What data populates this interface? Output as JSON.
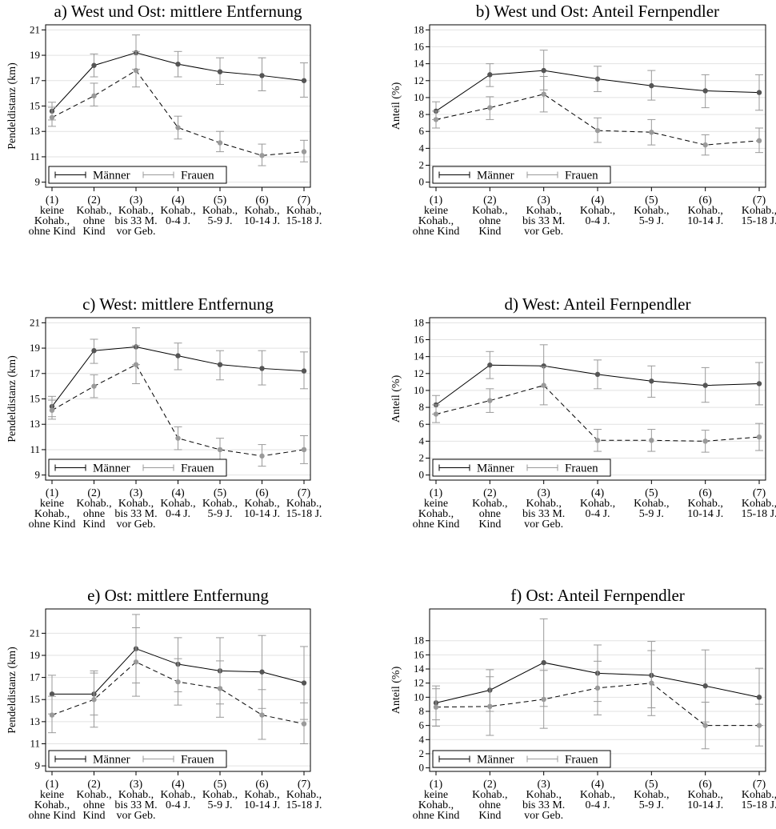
{
  "colors": {
    "men": "#555555",
    "women": "#9a9a9a",
    "grid": "#e2e2e2",
    "frame": "#000000"
  },
  "chart_data": [
    {
      "type": "line",
      "title": "a) West und Ost: mittlere Entfernung",
      "ylabel": "Pendeldistanz (km)",
      "ylim": [
        8.6,
        21.4
      ],
      "yticks": [
        9,
        11,
        13,
        15,
        17,
        19,
        21
      ],
      "x_tick_lines": [
        [
          "(1)",
          "keine",
          "Kohab.,",
          "ohne Kind"
        ],
        [
          "(2)",
          "Kohab.,",
          "ohne",
          "Kind"
        ],
        [
          "(3)",
          "Kohab.,",
          "bis 33 M.",
          "vor Geb."
        ],
        [
          "(4)",
          "Kohab.,",
          "0-4 J."
        ],
        [
          "(5)",
          "Kohab.,",
          "5-9 J."
        ],
        [
          "(6)",
          "Kohab.,",
          "10-14 J."
        ],
        [
          "(7)",
          "Kohab.,",
          "15-18 J."
        ]
      ],
      "legend": [
        "Männer",
        "Frauen"
      ],
      "legend_position": "bottom-left inside",
      "grid": true,
      "series": [
        {
          "name": "Männer",
          "line": "solid",
          "values": [
            14.6,
            18.2,
            19.2,
            18.3,
            17.7,
            17.4,
            17.0
          ],
          "ci_low": [
            13.9,
            17.3,
            17.9,
            17.3,
            16.7,
            16.2,
            15.7
          ],
          "ci_high": [
            15.3,
            19.1,
            20.6,
            19.3,
            18.8,
            18.8,
            18.4
          ]
        },
        {
          "name": "Frauen",
          "line": "dashed",
          "values": [
            14.1,
            15.8,
            17.8,
            13.3,
            12.1,
            11.1,
            11.4
          ],
          "ci_low": [
            13.4,
            15.0,
            16.5,
            12.4,
            11.4,
            10.3,
            10.6
          ],
          "ci_high": [
            14.9,
            16.8,
            19.3,
            14.2,
            13.0,
            12.0,
            12.3
          ]
        }
      ]
    },
    {
      "type": "line",
      "title": "b) West und Ost: Anteil Fernpendler",
      "ylabel": "Anteil (%)",
      "ylim": [
        -0.6,
        18.6
      ],
      "yticks": [
        0,
        2,
        4,
        6,
        8,
        10,
        12,
        14,
        16,
        18
      ],
      "x_tick_lines": [
        [
          "(1)",
          "keine",
          "Kohab.,",
          "ohne Kind"
        ],
        [
          "(2)",
          "Kohab.,",
          "ohne",
          "Kind"
        ],
        [
          "(3)",
          "Kohab.,",
          "bis 33 M.",
          "vor Geb."
        ],
        [
          "(4)",
          "Kohab.,",
          "0-4 J."
        ],
        [
          "(5)",
          "Kohab.,",
          "5-9 J."
        ],
        [
          "(6)",
          "Kohab.,",
          "10-14 J."
        ],
        [
          "(7)",
          "Kohab.,",
          "15-18 J."
        ]
      ],
      "legend": [
        "Männer",
        "Frauen"
      ],
      "legend_position": "bottom-left inside",
      "grid": true,
      "series": [
        {
          "name": "Männer",
          "line": "solid",
          "values": [
            8.4,
            12.7,
            13.2,
            12.2,
            11.4,
            10.8,
            10.6
          ],
          "ci_low": [
            7.4,
            11.3,
            10.9,
            10.7,
            9.7,
            8.8,
            8.5
          ],
          "ci_high": [
            9.5,
            14.0,
            15.6,
            13.7,
            13.2,
            12.7,
            12.7
          ]
        },
        {
          "name": "Frauen",
          "line": "dashed",
          "values": [
            7.4,
            8.8,
            10.4,
            6.1,
            5.9,
            4.4,
            4.9
          ],
          "ci_low": [
            6.4,
            7.4,
            8.3,
            4.7,
            4.4,
            3.2,
            3.5
          ],
          "ci_high": [
            8.4,
            10.1,
            12.5,
            7.6,
            7.4,
            5.6,
            6.4
          ]
        }
      ]
    },
    {
      "type": "line",
      "title": "c) West: mittlere Entfernung",
      "ylabel": "Pendeldistanz (km)",
      "ylim": [
        8.6,
        21.4
      ],
      "yticks": [
        9,
        11,
        13,
        15,
        17,
        19,
        21
      ],
      "x_tick_lines": [
        [
          "(1)",
          "keine",
          "Kohab.,",
          "ohne Kind"
        ],
        [
          "(2)",
          "Kohab.,",
          "ohne",
          "Kind"
        ],
        [
          "(3)",
          "Kohab.,",
          "bis 33 M.",
          "vor Geb."
        ],
        [
          "(4)",
          "Kohab.,",
          "0-4 J."
        ],
        [
          "(5)",
          "Kohab.,",
          "5-9 J."
        ],
        [
          "(6)",
          "Kohab.,",
          "10-14 J."
        ],
        [
          "(7)",
          "Kohab.,",
          "15-18 J."
        ]
      ],
      "legend": [
        "Männer",
        "Frauen"
      ],
      "legend_position": "bottom-left inside",
      "grid": true,
      "series": [
        {
          "name": "Männer",
          "line": "solid",
          "values": [
            14.4,
            18.8,
            19.1,
            18.4,
            17.7,
            17.4,
            17.2
          ],
          "ci_low": [
            13.6,
            17.8,
            17.7,
            17.3,
            16.5,
            16.1,
            15.8
          ],
          "ci_high": [
            15.2,
            19.7,
            20.6,
            19.4,
            18.8,
            18.8,
            18.7
          ]
        },
        {
          "name": "Frauen",
          "line": "dashed",
          "values": [
            14.1,
            16.0,
            17.7,
            11.9,
            11.0,
            10.5,
            11.0
          ],
          "ci_low": [
            13.4,
            15.1,
            16.2,
            11.0,
            10.1,
            9.7,
            9.9
          ],
          "ci_high": [
            14.9,
            16.9,
            19.2,
            12.8,
            11.9,
            11.4,
            12.1
          ]
        }
      ]
    },
    {
      "type": "line",
      "title": "d) West: Anteil Fernpendler",
      "ylabel": "Anteil (%)",
      "ylim": [
        -0.6,
        18.6
      ],
      "yticks": [
        0,
        2,
        4,
        6,
        8,
        10,
        12,
        14,
        16,
        18
      ],
      "x_tick_lines": [
        [
          "(1)",
          "keine",
          "Kohab.,",
          "ohne Kind"
        ],
        [
          "(2)",
          "Kohab.,",
          "ohne",
          "Kind"
        ],
        [
          "(3)",
          "Kohab.,",
          "bis 33 M.",
          "vor Geb."
        ],
        [
          "(4)",
          "Kohab.,",
          "0-4 J."
        ],
        [
          "(5)",
          "Kohab.,",
          "5-9 J."
        ],
        [
          "(6)",
          "Kohab.,",
          "10-14 J."
        ],
        [
          "(7)",
          "Kohab.,",
          "15-18 J."
        ]
      ],
      "legend": [
        "Männer",
        "Frauen"
      ],
      "legend_position": "bottom-left inside",
      "grid": true,
      "series": [
        {
          "name": "Männer",
          "line": "solid",
          "values": [
            8.3,
            13.0,
            12.9,
            11.9,
            11.1,
            10.6,
            10.8
          ],
          "ci_low": [
            7.2,
            11.4,
            10.4,
            10.2,
            9.2,
            8.6,
            8.3
          ],
          "ci_high": [
            9.4,
            14.6,
            15.4,
            13.6,
            12.9,
            12.7,
            13.3
          ]
        },
        {
          "name": "Frauen",
          "line": "dashed",
          "values": [
            7.2,
            8.8,
            10.6,
            4.1,
            4.1,
            4.0,
            4.5
          ],
          "ci_low": [
            6.2,
            7.4,
            8.3,
            2.8,
            2.8,
            2.7,
            2.9
          ],
          "ci_high": [
            8.3,
            10.2,
            12.8,
            5.4,
            5.4,
            5.3,
            6.1
          ]
        }
      ]
    },
    {
      "type": "line",
      "title": "e) Ost: mittlere Entfernung",
      "ylabel": "Pendeldistanz (km)",
      "ylim": [
        8.5,
        23.2
      ],
      "yticks": [
        9,
        11,
        13,
        15,
        17,
        19,
        21
      ],
      "x_tick_lines": [
        [
          "(1)",
          "keine",
          "Kohab.,",
          "ohne Kind"
        ],
        [
          "(2)",
          "Kohab.,",
          "ohne",
          "Kind"
        ],
        [
          "(3)",
          "Kohab.,",
          "bis 33 M.",
          "vor Geb."
        ],
        [
          "(4)",
          "Kohab.,",
          "0-4 J."
        ],
        [
          "(5)",
          "Kohab.,",
          "5-9 J."
        ],
        [
          "(6)",
          "Kohab.,",
          "10-14 J."
        ],
        [
          "(7)",
          "Kohab.,",
          "15-18 J."
        ]
      ],
      "legend": [
        "Männer",
        "Frauen"
      ],
      "legend_position": "bottom-left inside",
      "grid": true,
      "series": [
        {
          "name": "Männer",
          "line": "solid",
          "values": [
            15.5,
            15.5,
            19.6,
            18.2,
            17.6,
            17.5,
            16.5
          ],
          "ci_low": [
            13.7,
            13.6,
            16.5,
            15.7,
            14.6,
            14.2,
            13.2
          ],
          "ci_high": [
            17.2,
            17.6,
            22.7,
            20.6,
            20.6,
            20.8,
            19.8
          ]
        },
        {
          "name": "Frauen",
          "line": "dashed",
          "values": [
            13.6,
            15.0,
            18.4,
            16.6,
            16.0,
            13.6,
            12.8
          ],
          "ci_low": [
            12.0,
            12.5,
            15.3,
            14.5,
            13.4,
            11.4,
            11.0
          ],
          "ci_high": [
            15.3,
            17.4,
            21.5,
            18.7,
            18.5,
            15.9,
            14.7
          ]
        }
      ]
    },
    {
      "type": "line",
      "title": "f) Ost: Anteil Fernpendler",
      "ylabel": "Anteil (%)",
      "ylim": [
        -0.5,
        22.5
      ],
      "yticks": [
        0,
        2,
        4,
        6,
        8,
        10,
        12,
        14,
        16,
        18
      ],
      "x_tick_lines": [
        [
          "(1)",
          "keine",
          "Kohab.,",
          "ohne Kind"
        ],
        [
          "(2)",
          "Kohab.,",
          "ohne",
          "Kind"
        ],
        [
          "(3)",
          "Kohab.,",
          "bis 33 M.",
          "vor Geb."
        ],
        [
          "(4)",
          "Kohab.,",
          "0-4 J."
        ],
        [
          "(5)",
          "Kohab.,",
          "5-9 J."
        ],
        [
          "(6)",
          "Kohab.,",
          "10-14 J."
        ],
        [
          "(7)",
          "Kohab.,",
          "15-18 J."
        ]
      ],
      "legend": [
        "Männer",
        "Frauen"
      ],
      "legend_position": "bottom-left inside",
      "grid": true,
      "series": [
        {
          "name": "Männer",
          "line": "solid",
          "values": [
            9.2,
            11.0,
            14.9,
            13.4,
            13.1,
            11.6,
            10.0
          ],
          "ci_low": [
            6.8,
            8.0,
            8.7,
            9.4,
            8.5,
            6.5,
            6.0
          ],
          "ci_high": [
            11.6,
            13.9,
            21.1,
            17.4,
            17.9,
            16.7,
            14.1
          ]
        },
        {
          "name": "Frauen",
          "line": "dashed",
          "values": [
            8.6,
            8.7,
            9.7,
            11.3,
            12.0,
            6.0,
            6.0
          ],
          "ci_low": [
            5.9,
            4.6,
            5.6,
            7.5,
            7.4,
            2.7,
            3.1
          ],
          "ci_high": [
            11.2,
            12.9,
            13.8,
            15.1,
            16.6,
            9.3,
            9.0
          ]
        }
      ]
    }
  ]
}
